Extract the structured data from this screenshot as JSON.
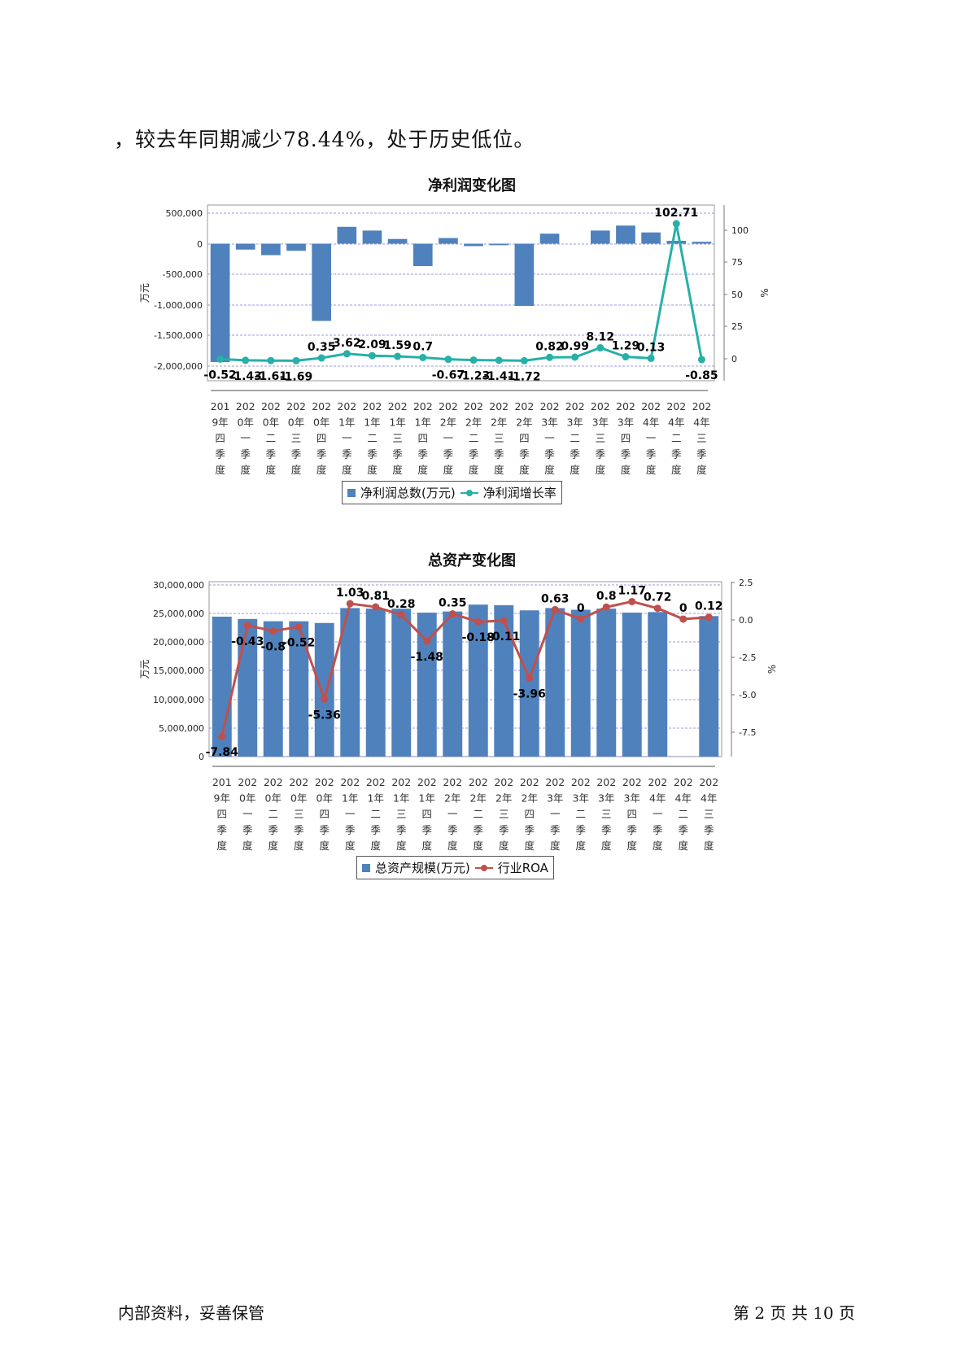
{
  "intro_text": "，较去年同期减少78.44%，处于历史低位。",
  "quarters": [
    "2019年四季度",
    "2020年一季度",
    "2020年二季度",
    "2020年三季度",
    "2020年四季度",
    "2021年一季度",
    "2021年二季度",
    "2021年三季度",
    "2021年四季度",
    "2022年一季度",
    "2022年二季度",
    "2022年三季度",
    "2022年四季度",
    "2023年一季度",
    "2023年二季度",
    "2023年三季度",
    "2023年四季度",
    "2024年一季度",
    "2024年二季度",
    "2024年三季度"
  ],
  "chart_data": [
    {
      "type": "bar",
      "title": "净利润变化图",
      "ylabel_left": "万元",
      "ylabel_right": "%",
      "left_ticks": [
        "500,000",
        "0",
        "-500,000",
        "-1,000,000",
        "-1,500,000",
        "-2,000,000"
      ],
      "right_ticks": [
        "100",
        "75",
        "50",
        "25",
        "0"
      ],
      "ylim_left": [
        -2200000,
        620000
      ],
      "ylim_right": [
        -17,
        117
      ],
      "legend_placement": "bottom",
      "series": [
        {
          "name": "净利润总数(万元)",
          "kind": "bar",
          "color": "#4f81bd",
          "values": [
            -1900000,
            -95000,
            -185000,
            -115000,
            -1240000,
            270000,
            210000,
            75000,
            -360000,
            90000,
            -40000,
            -25000,
            -1000000,
            160000,
            0,
            210000,
            290000,
            180000,
            45000,
            30000
          ]
        },
        {
          "name": "净利润增长率",
          "kind": "line",
          "color": "#26b0a8",
          "values": [
            -0.52,
            -1.43,
            -1.61,
            -1.69,
            0.35,
            3.62,
            2.09,
            1.59,
            0.7,
            -0.67,
            -1.23,
            -1.41,
            -1.72,
            0.82,
            0.99,
            8.12,
            1.29,
            0.13,
            102.71,
            -0.85
          ],
          "labels": [
            "-0.52",
            "-1.43",
            "-1.61",
            "-1.69",
            "0.35",
            "3.62",
            "2.09",
            "1.59",
            "0.7",
            "-0.67",
            "-1.23",
            "-1.41",
            "-1.72",
            "0.82",
            "0.99",
            "8.12",
            "1.29",
            "0.13",
            "102.71",
            "-0.85"
          ]
        }
      ]
    },
    {
      "type": "bar",
      "title": "总资产变化图",
      "ylabel_left": "万元",
      "ylabel_right": "%",
      "left_ticks": [
        "30,000,000",
        "25,000,000",
        "20,000,000",
        "15,000,000",
        "10,000,000",
        "5,000,000",
        "0"
      ],
      "right_ticks": [
        "2.5",
        "0.0",
        "-2.5",
        "-5.0",
        "-7.5"
      ],
      "ylim_left": [
        0,
        30500000
      ],
      "ylim_right": [
        -9.2,
        2.5
      ],
      "legend_placement": "bottom",
      "series": [
        {
          "name": "总资产规模(万元)",
          "kind": "bar",
          "color": "#4f81bd",
          "values": [
            24400000,
            24000000,
            23600000,
            23600000,
            23300000,
            25900000,
            25800000,
            25800000,
            25100000,
            25300000,
            26500000,
            26400000,
            25500000,
            25900000,
            25600000,
            25800000,
            25100000,
            25200000,
            0,
            24500000
          ]
        },
        {
          "name": "行业ROA",
          "kind": "line",
          "color": "#c0504d",
          "values": [
            -7.84,
            -0.43,
            -0.8,
            -0.52,
            -5.36,
            1.03,
            0.81,
            0.28,
            -1.48,
            0.35,
            -0.18,
            -0.11,
            -3.96,
            0.63,
            0,
            0.8,
            1.17,
            0.72,
            0,
            0.12
          ],
          "labels": [
            "-7.84",
            "-0.43",
            "-0.8",
            "-0.52",
            "-5.36",
            "1.03",
            "0.81",
            "0.28",
            "-1.48",
            "0.35",
            "-0.18",
            "-0.11",
            "-3.96",
            "0.63",
            "0",
            "0.8",
            "1.17",
            "0.72",
            "0",
            "0.12"
          ]
        }
      ]
    }
  ],
  "footer": {
    "left": "内部资料，妥善保管",
    "right": "第 2 页   共 10 页"
  }
}
